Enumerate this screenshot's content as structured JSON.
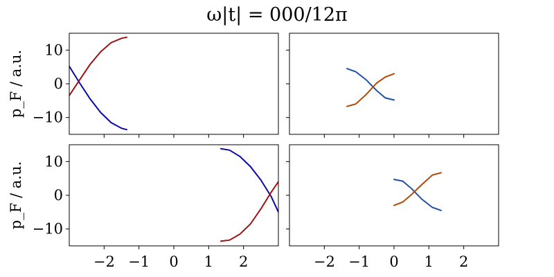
{
  "figure": {
    "title": "ω|t| = 000/12π"
  },
  "chart_data": [
    {
      "type": "line",
      "panel": "top-left",
      "ylabel": "p_F / a.u.",
      "xlim": [
        -3,
        3
      ],
      "ylim": [
        -15,
        15
      ],
      "xticks": [
        -2,
        -1,
        0,
        1,
        2
      ],
      "yticks": [
        -10,
        0,
        10
      ],
      "show_xticklabels": false,
      "show_yticklabels": true,
      "grid": false,
      "series": [
        {
          "color": "#0a0aa8",
          "x": [
            -3.0,
            -2.7,
            -2.4,
            -2.1,
            -1.8,
            -1.5,
            -1.35
          ],
          "y": [
            5.2,
            0.2,
            -4.5,
            -8.5,
            -11.5,
            -13.2,
            -13.6
          ]
        },
        {
          "color": "#a01010",
          "x": [
            -3.0,
            -2.7,
            -2.4,
            -2.1,
            -1.8,
            -1.5,
            -1.35
          ],
          "y": [
            -3.5,
            1.2,
            5.8,
            9.5,
            12.2,
            13.5,
            13.8
          ]
        }
      ]
    },
    {
      "type": "line",
      "panel": "top-right",
      "ylabel": "",
      "xlim": [
        -3,
        3
      ],
      "ylim": [
        -15,
        15
      ],
      "xticks": [
        -2,
        -1,
        0,
        1,
        2
      ],
      "yticks": [
        -10,
        0,
        10
      ],
      "show_xticklabels": false,
      "show_yticklabels": false,
      "grid": false,
      "series": [
        {
          "color": "#1f4fa8",
          "x": [
            -1.35,
            -1.1,
            -0.8,
            -0.5,
            -0.25,
            0.0
          ],
          "y": [
            4.5,
            3.6,
            1.2,
            -2.0,
            -4.2,
            -4.8
          ]
        },
        {
          "color": "#b04a0a",
          "x": [
            -1.35,
            -1.1,
            -0.8,
            -0.5,
            -0.25,
            0.0
          ],
          "y": [
            -6.7,
            -6.0,
            -3.2,
            0.2,
            2.0,
            3.0
          ]
        }
      ]
    },
    {
      "type": "line",
      "panel": "bottom-left",
      "ylabel": "p_F / a.u.",
      "xlim": [
        -3,
        3
      ],
      "ylim": [
        -15,
        15
      ],
      "xticks": [
        -2,
        -1,
        0,
        1,
        2
      ],
      "yticks": [
        -10,
        0,
        10
      ],
      "show_xticklabels": true,
      "show_yticklabels": true,
      "grid": false,
      "series": [
        {
          "color": "#0a0aa8",
          "x": [
            1.35,
            1.6,
            1.9,
            2.2,
            2.5,
            2.8,
            3.0
          ],
          "y": [
            13.8,
            13.4,
            11.5,
            8.5,
            4.5,
            -0.5,
            -5.0
          ]
        },
        {
          "color": "#a01010",
          "x": [
            1.35,
            1.6,
            1.9,
            2.2,
            2.5,
            2.8,
            3.0
          ],
          "y": [
            -13.6,
            -13.3,
            -11.5,
            -8.5,
            -4.0,
            1.0,
            4.0
          ]
        }
      ]
    },
    {
      "type": "line",
      "panel": "bottom-right",
      "ylabel": "",
      "xlim": [
        -3,
        3
      ],
      "ylim": [
        -15,
        15
      ],
      "xticks": [
        -2,
        -1,
        0,
        1,
        2
      ],
      "yticks": [
        -10,
        0,
        10
      ],
      "show_xticklabels": true,
      "show_yticklabels": false,
      "grid": false,
      "series": [
        {
          "color": "#1f4fa8",
          "x": [
            0.0,
            0.25,
            0.5,
            0.8,
            1.1,
            1.35
          ],
          "y": [
            4.7,
            4.2,
            2.0,
            -1.2,
            -3.6,
            -4.5
          ]
        },
        {
          "color": "#b04a0a",
          "x": [
            0.0,
            0.25,
            0.5,
            0.8,
            1.1,
            1.35
          ],
          "y": [
            -3.0,
            -2.0,
            0.2,
            3.2,
            6.0,
            6.7
          ]
        }
      ]
    }
  ]
}
